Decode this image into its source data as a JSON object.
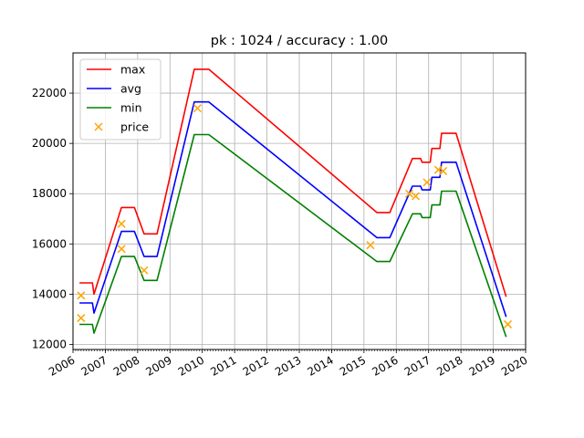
{
  "chart_data": {
    "type": "line",
    "title": "pk : 1024 / accuracy : 1.00",
    "xlabel": "",
    "ylabel": "",
    "xlim": [
      2006.0,
      2020.0
    ],
    "ylim": [
      11800,
      23600
    ],
    "x_ticks": [
      2006,
      2007,
      2008,
      2009,
      2010,
      2011,
      2012,
      2013,
      2014,
      2015,
      2016,
      2017,
      2018,
      2019,
      2020
    ],
    "y_ticks": [
      12000,
      14000,
      16000,
      18000,
      20000,
      22000
    ],
    "grid": true,
    "legend_position": "upper left",
    "series": [
      {
        "name": "max",
        "kind": "line",
        "color": "#ff0000",
        "points": [
          [
            2006.2,
            14450
          ],
          [
            2006.6,
            14450
          ],
          [
            2006.65,
            14000
          ],
          [
            2007.5,
            17450
          ],
          [
            2007.9,
            17450
          ],
          [
            2008.2,
            16400
          ],
          [
            2008.6,
            16400
          ],
          [
            2009.75,
            22950
          ],
          [
            2010.2,
            22950
          ],
          [
            2015.4,
            17250
          ],
          [
            2015.8,
            17250
          ],
          [
            2016.5,
            19400
          ],
          [
            2016.75,
            19400
          ],
          [
            2016.8,
            19250
          ],
          [
            2017.05,
            19250
          ],
          [
            2017.1,
            19800
          ],
          [
            2017.35,
            19800
          ],
          [
            2017.4,
            20400
          ],
          [
            2017.85,
            20400
          ],
          [
            2019.4,
            13900
          ]
        ]
      },
      {
        "name": "avg",
        "kind": "line",
        "color": "#0000ff",
        "points": [
          [
            2006.2,
            13650
          ],
          [
            2006.6,
            13650
          ],
          [
            2006.65,
            13250
          ],
          [
            2007.5,
            16500
          ],
          [
            2007.9,
            16500
          ],
          [
            2008.2,
            15500
          ],
          [
            2008.6,
            15500
          ],
          [
            2009.75,
            21650
          ],
          [
            2010.2,
            21650
          ],
          [
            2015.4,
            16250
          ],
          [
            2015.8,
            16250
          ],
          [
            2016.5,
            18300
          ],
          [
            2016.75,
            18300
          ],
          [
            2016.8,
            18150
          ],
          [
            2017.05,
            18150
          ],
          [
            2017.1,
            18650
          ],
          [
            2017.35,
            18650
          ],
          [
            2017.4,
            19250
          ],
          [
            2017.85,
            19250
          ],
          [
            2019.4,
            13100
          ]
        ]
      },
      {
        "name": "min",
        "kind": "line",
        "color": "#008000",
        "points": [
          [
            2006.2,
            12800
          ],
          [
            2006.6,
            12800
          ],
          [
            2006.65,
            12450
          ],
          [
            2007.5,
            15500
          ],
          [
            2007.9,
            15500
          ],
          [
            2008.2,
            14550
          ],
          [
            2008.6,
            14550
          ],
          [
            2009.75,
            20350
          ],
          [
            2010.2,
            20350
          ],
          [
            2015.4,
            15300
          ],
          [
            2015.8,
            15300
          ],
          [
            2016.5,
            17200
          ],
          [
            2016.75,
            17200
          ],
          [
            2016.8,
            17050
          ],
          [
            2017.05,
            17050
          ],
          [
            2017.1,
            17550
          ],
          [
            2017.35,
            17550
          ],
          [
            2017.4,
            18100
          ],
          [
            2017.85,
            18100
          ],
          [
            2019.4,
            12300
          ]
        ]
      },
      {
        "name": "price",
        "kind": "scatter",
        "marker": "x",
        "color": "#ffa500",
        "points": [
          [
            2006.25,
            13950
          ],
          [
            2006.25,
            13050
          ],
          [
            2007.5,
            16800
          ],
          [
            2007.5,
            15800
          ],
          [
            2008.2,
            14950
          ],
          [
            2009.85,
            21400
          ],
          [
            2015.2,
            15950
          ],
          [
            2016.4,
            18000
          ],
          [
            2016.6,
            17900
          ],
          [
            2016.95,
            18450
          ],
          [
            2017.3,
            18950
          ],
          [
            2017.45,
            18900
          ],
          [
            2019.45,
            12800
          ]
        ]
      }
    ]
  }
}
